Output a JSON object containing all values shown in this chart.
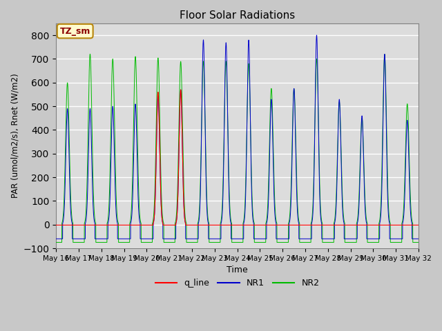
{
  "title": "Floor Solar Radiations",
  "xlabel": "Time",
  "ylabel": "PAR (umol/m2/s), Rnet (W/m2)",
  "ylim": [
    -100,
    850
  ],
  "yticks": [
    -100,
    0,
    100,
    200,
    300,
    400,
    500,
    600,
    700,
    800
  ],
  "annotation_text": "TZ_sm",
  "annotation_color": "#8B0000",
  "annotation_bg": "#FFFACD",
  "annotation_border": "#B8860B",
  "colors": {
    "q_line": "#FF0000",
    "NR1": "#0000CC",
    "NR2": "#00BB00"
  },
  "plot_bg": "#DCDCDC",
  "fig_bg": "#C8C8C8",
  "legend_labels": [
    "q_line",
    "NR1",
    "NR2"
  ],
  "num_days": 16,
  "ppd": 288,
  "nr1_peaks": [
    490,
    490,
    500,
    510,
    540,
    570,
    780,
    770,
    780,
    530,
    575,
    800,
    530,
    460,
    720,
    440
  ],
  "nr2_peaks": [
    600,
    720,
    700,
    710,
    705,
    690,
    690,
    690,
    680,
    575,
    575,
    700,
    520,
    450,
    720,
    510
  ],
  "q_peaks": [
    5,
    5,
    5,
    5,
    560,
    570,
    5,
    5,
    5,
    5,
    5,
    5,
    5,
    5,
    5,
    5
  ],
  "nr1_night": -60,
  "nr2_night": -75,
  "sigma": 0.07
}
